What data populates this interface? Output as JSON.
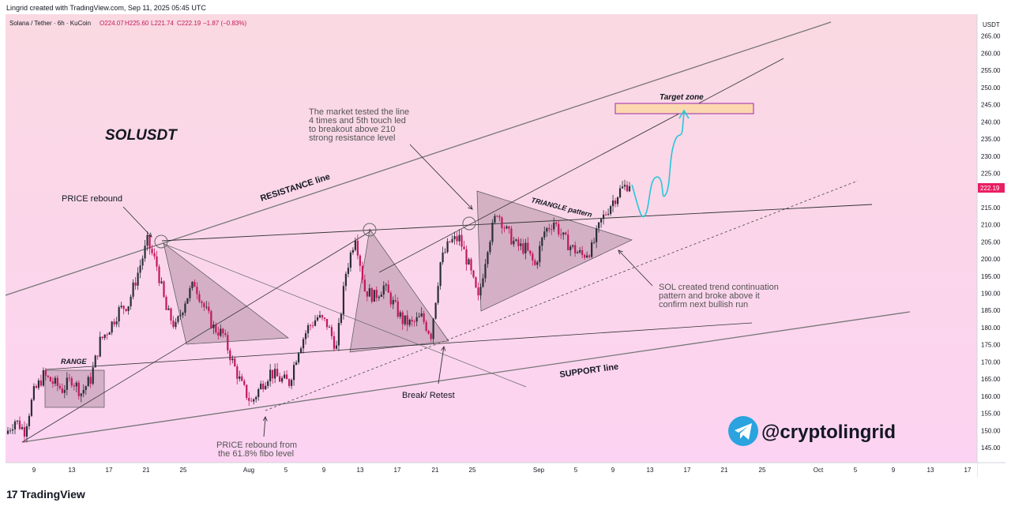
{
  "header": {
    "created_by": "Lingrid created with TradingView.com, Sep 11, 2025 05:45 UTC"
  },
  "legend": {
    "symbol": "Solana / Tether · 6h · KuCoin",
    "o": "O224.07",
    "h": "H225.60",
    "l": "L221.74",
    "c": "C222.19",
    "change": "−1.87 (−0.83%)"
  },
  "price_axis": {
    "currency": "USDT",
    "current_price": "222.19",
    "ticks": [
      "265.00",
      "260.00",
      "255.00",
      "250.00",
      "245.00",
      "240.00",
      "235.00",
      "230.00",
      "225.00",
      "220.00",
      "215.00",
      "210.00",
      "205.00",
      "200.00",
      "195.00",
      "190.00",
      "185.00",
      "180.00",
      "175.00",
      "170.00",
      "165.00",
      "160.00",
      "155.00",
      "150.00",
      "145.00"
    ]
  },
  "time_axis": {
    "ticks": [
      "9",
      "13",
      "17",
      "21",
      "25",
      "Aug",
      "5",
      "9",
      "13",
      "17",
      "21",
      "25",
      "Sep",
      "5",
      "9",
      "13",
      "17",
      "21",
      "25",
      "Oct",
      "5",
      "9",
      "13",
      "17"
    ]
  },
  "annotations": {
    "ticker": "SOLUSDT",
    "resistance_line": "RESISTANCE line",
    "support_line": "SUPPORT line",
    "price_rebound": "PRICE rebound",
    "range": "RANGE",
    "triangle_pattern": "TRIANGLE pattern",
    "target_zone": "Target zone",
    "break_retest": "Break/ Retest",
    "market_note": [
      "The market tested the line",
      "4 times and 5th touch led",
      "to breakout above 210",
      "strong resistance level"
    ],
    "sol_note": [
      "SOL created trend continuation",
      "pattern and broke above it",
      "confirm next bullish run"
    ],
    "fibo_note": [
      "PRICE rebound from",
      "the 61.8% fibo level"
    ],
    "watermark": "@cryptolingrid"
  },
  "footer": {
    "logo": "17",
    "brand": "TradingView"
  },
  "colors": {
    "bg_top": "#fad9e2",
    "bg_bottom": "#fcd3f2",
    "up_candle": "#2a2e39",
    "down_candle": "#c2185b",
    "price_tag": "#e91e63",
    "target_fill": "#fcd8b0",
    "target_border": "#9c27b0",
    "projection": "#26c6da",
    "watermark_circle": "#2aa3df"
  },
  "chart_data": {
    "type": "candlestick",
    "title": "SOLUSDT",
    "timeframe": "6h",
    "exchange": "KuCoin",
    "ylim": [
      142,
      270
    ],
    "last": {
      "open": 224.07,
      "high": 225.6,
      "low": 221.74,
      "close": 222.19
    },
    "target_zone": [
      245,
      247
    ],
    "close_path": [
      {
        "x": "Jul 7",
        "y": 149
      },
      {
        "x": "Jul 8",
        "y": 153
      },
      {
        "x": "Jul 9",
        "y": 150
      },
      {
        "x": "Jul 10",
        "y": 161
      },
      {
        "x": "Jul 11",
        "y": 166
      },
      {
        "x": "Jul 12",
        "y": 164
      },
      {
        "x": "Jul 13",
        "y": 162
      },
      {
        "x": "Jul 14",
        "y": 165
      },
      {
        "x": "Jul 15",
        "y": 161
      },
      {
        "x": "Jul 16",
        "y": 165
      },
      {
        "x": "Jul 17",
        "y": 176
      },
      {
        "x": "Jul 18",
        "y": 180
      },
      {
        "x": "Jul 19",
        "y": 185
      },
      {
        "x": "Jul 20",
        "y": 187
      },
      {
        "x": "Jul 21",
        "y": 196
      },
      {
        "x": "Jul 22",
        "y": 205
      },
      {
        "x": "Jul 23",
        "y": 198
      },
      {
        "x": "Jul 24",
        "y": 185
      },
      {
        "x": "Jul 25",
        "y": 180
      },
      {
        "x": "Jul 26",
        "y": 188
      },
      {
        "x": "Jul 27",
        "y": 193
      },
      {
        "x": "Jul 28",
        "y": 186
      },
      {
        "x": "Jul 29",
        "y": 180
      },
      {
        "x": "Jul 30",
        "y": 178
      },
      {
        "x": "Jul 31",
        "y": 170
      },
      {
        "x": "Aug 1",
        "y": 163
      },
      {
        "x": "Aug 2",
        "y": 158
      },
      {
        "x": "Aug 3",
        "y": 163
      },
      {
        "x": "Aug 4",
        "y": 167
      },
      {
        "x": "Aug 5",
        "y": 165
      },
      {
        "x": "Aug 6",
        "y": 164
      },
      {
        "x": "Aug 7",
        "y": 174
      },
      {
        "x": "Aug 8",
        "y": 180
      },
      {
        "x": "Aug 9",
        "y": 183
      },
      {
        "x": "Aug 10",
        "y": 181
      },
      {
        "x": "Aug 11",
        "y": 174
      },
      {
        "x": "Aug 12",
        "y": 196
      },
      {
        "x": "Aug 13",
        "y": 207
      },
      {
        "x": "Aug 14",
        "y": 191
      },
      {
        "x": "Aug 15",
        "y": 189
      },
      {
        "x": "Aug 16",
        "y": 192
      },
      {
        "x": "Aug 17",
        "y": 187
      },
      {
        "x": "Aug 18",
        "y": 182
      },
      {
        "x": "Aug 19",
        "y": 181
      },
      {
        "x": "Aug 20",
        "y": 183
      },
      {
        "x": "Aug 21",
        "y": 178
      },
      {
        "x": "Aug 22",
        "y": 199
      },
      {
        "x": "Aug 23",
        "y": 205
      },
      {
        "x": "Aug 24",
        "y": 206
      },
      {
        "x": "Aug 25",
        "y": 198
      },
      {
        "x": "Aug 26",
        "y": 188
      },
      {
        "x": "Aug 27",
        "y": 204
      },
      {
        "x": "Aug 28",
        "y": 214
      },
      {
        "x": "Aug 29",
        "y": 208
      },
      {
        "x": "Aug 30",
        "y": 204
      },
      {
        "x": "Aug 31",
        "y": 203
      },
      {
        "x": "Sep 1",
        "y": 198
      },
      {
        "x": "Sep 2",
        "y": 208
      },
      {
        "x": "Sep 3",
        "y": 211
      },
      {
        "x": "Sep 4",
        "y": 206
      },
      {
        "x": "Sep 5",
        "y": 203
      },
      {
        "x": "Sep 6",
        "y": 201
      },
      {
        "x": "Sep 7",
        "y": 203
      },
      {
        "x": "Sep 8",
        "y": 211
      },
      {
        "x": "Sep 9",
        "y": 216
      },
      {
        "x": "Sep 10",
        "y": 220
      },
      {
        "x": "Sep 11",
        "y": 222.19
      }
    ]
  }
}
